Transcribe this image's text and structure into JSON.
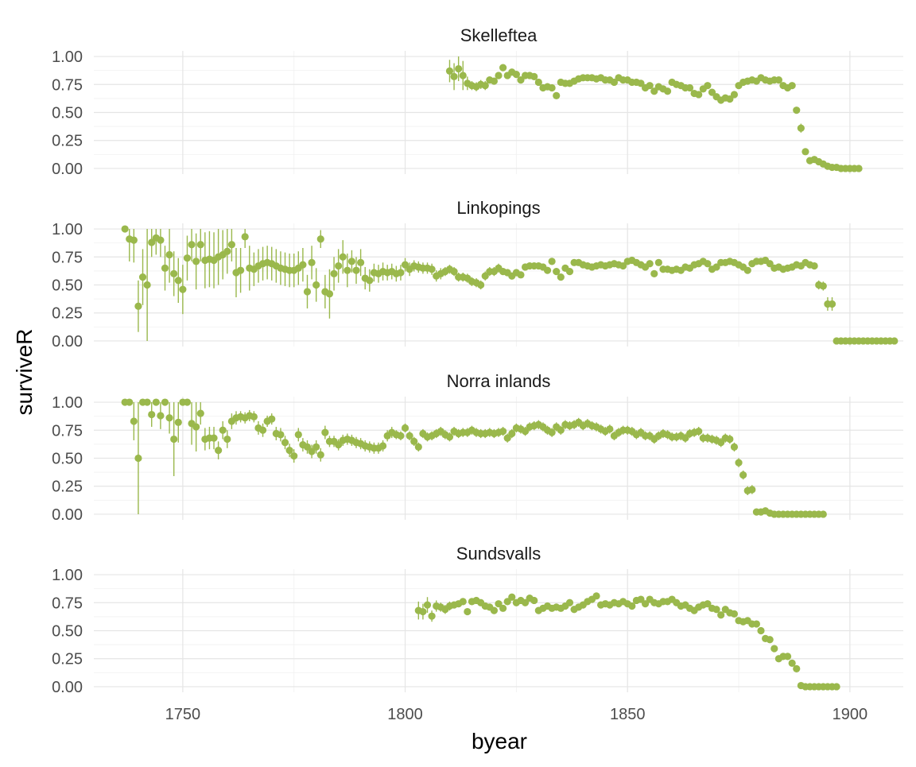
{
  "chart_data": {
    "type": "scatter",
    "xlabel": "byear",
    "ylabel": "surviveR",
    "xlim": [
      1730,
      1912
    ],
    "ylim": [
      -0.05,
      1.05
    ],
    "x_ticks": [
      1750,
      1800,
      1850,
      1900
    ],
    "x_tick_labels": [
      "1750",
      "1800",
      "1850",
      "1900"
    ],
    "y_ticks": [
      0,
      0.25,
      0.5,
      0.75,
      1
    ],
    "y_tick_labels": [
      "0.00",
      "0.25",
      "0.50",
      "0.75",
      "1.00"
    ],
    "grid": true,
    "error_bars": true,
    "point_color": "#9ab84c",
    "panels": [
      {
        "name": "Skelleftea",
        "x_start": 1810,
        "y": [
          0.87,
          0.82,
          0.89,
          0.83,
          0.76,
          0.74,
          0.73,
          0.75,
          0.74,
          0.79,
          0.78,
          0.83,
          0.9,
          0.83,
          0.86,
          0.84,
          0.79,
          0.83,
          0.83,
          0.82,
          0.77,
          0.72,
          0.73,
          0.72,
          0.65,
          0.77,
          0.76,
          0.76,
          0.78,
          0.8,
          0.81,
          0.81,
          0.81,
          0.8,
          0.81,
          0.79,
          0.79,
          0.77,
          0.81,
          0.79,
          0.79,
          0.77,
          0.77,
          0.76,
          0.72,
          0.74,
          0.69,
          0.73,
          0.71,
          0.69,
          0.77,
          0.75,
          0.74,
          0.72,
          0.72,
          0.67,
          0.66,
          0.71,
          0.74,
          0.68,
          0.64,
          0.61,
          0.63,
          0.62,
          0.66,
          0.74,
          0.77,
          0.78,
          0.79,
          0.78,
          0.81,
          0.79,
          0.78,
          0.79,
          0.79,
          0.74,
          0.72,
          0.74,
          0.52,
          0.36,
          0.15,
          0.07,
          0.08,
          0.06,
          0.04,
          0.02,
          0.01,
          0.01,
          0.0,
          0.0,
          0.0,
          0.0,
          0.0
        ],
        "err": [
          0.1,
          0.12,
          0.11,
          0.13,
          0.06,
          0.04,
          0.04,
          0.04,
          0.04,
          0.03,
          0.03,
          0.03,
          0.03,
          0.03,
          0.03,
          0.03,
          0.03,
          0.03,
          0.03,
          0.03,
          0.03,
          0.03,
          0.03,
          0.03,
          0.03,
          0.03,
          0.03,
          0.02,
          0.02,
          0.02,
          0.02,
          0.02,
          0.02,
          0.02,
          0.02,
          0.02,
          0.02,
          0.02,
          0.02,
          0.02,
          0.02,
          0.02,
          0.02,
          0.02,
          0.02,
          0.02,
          0.02,
          0.02,
          0.02,
          0.02,
          0.02,
          0.02,
          0.02,
          0.02,
          0.02,
          0.02,
          0.02,
          0.02,
          0.02,
          0.02,
          0.02,
          0.02,
          0.02,
          0.02,
          0.02,
          0.02,
          0.02,
          0.02,
          0.02,
          0.02,
          0.02,
          0.02,
          0.02,
          0.02,
          0.02,
          0.02,
          0.02,
          0.02,
          0.03,
          0.04,
          0.03,
          0.02,
          0.02,
          0.01,
          0.01,
          0.01,
          0.0,
          0.0,
          0.0,
          0.0,
          0.0,
          0.0,
          0.0
        ]
      },
      {
        "name": "Linkopings",
        "x_start": 1737,
        "y": [
          1.0,
          0.91,
          0.9,
          0.31,
          0.57,
          0.5,
          0.88,
          0.92,
          0.9,
          0.65,
          0.77,
          0.6,
          0.54,
          0.46,
          0.74,
          0.86,
          0.71,
          0.86,
          0.72,
          0.73,
          0.72,
          0.75,
          0.77,
          0.8,
          0.86,
          0.61,
          0.63,
          0.93,
          0.65,
          0.64,
          0.67,
          0.69,
          0.7,
          0.69,
          0.67,
          0.65,
          0.64,
          0.63,
          0.63,
          0.65,
          0.68,
          0.44,
          0.7,
          0.5,
          0.91,
          0.44,
          0.42,
          0.6,
          0.67,
          0.75,
          0.63,
          0.71,
          0.63,
          0.7,
          0.56,
          0.54,
          0.61,
          0.6,
          0.62,
          0.61,
          0.62,
          0.6,
          0.61,
          0.68,
          0.64,
          0.67,
          0.66,
          0.65,
          0.65,
          0.64,
          0.58,
          0.6,
          0.62,
          0.64,
          0.62,
          0.57,
          0.57,
          0.56,
          0.53,
          0.52,
          0.5,
          0.58,
          0.62,
          0.62,
          0.65,
          0.62,
          0.61,
          0.58,
          0.61,
          0.59,
          0.66,
          0.67,
          0.67,
          0.67,
          0.66,
          0.63,
          0.71,
          0.62,
          0.57,
          0.65,
          0.62,
          0.7,
          0.7,
          0.68,
          0.67,
          0.66,
          0.67,
          0.68,
          0.67,
          0.68,
          0.69,
          0.68,
          0.67,
          0.71,
          0.72,
          0.7,
          0.68,
          0.66,
          0.69,
          0.6,
          0.7,
          0.64,
          0.64,
          0.63,
          0.64,
          0.63,
          0.66,
          0.65,
          0.68,
          0.69,
          0.71,
          0.69,
          0.64,
          0.66,
          0.7,
          0.7,
          0.71,
          0.7,
          0.68,
          0.66,
          0.63,
          0.69,
          0.71,
          0.71,
          0.72,
          0.69,
          0.65,
          0.66,
          0.64,
          0.65,
          0.66,
          0.68,
          0.67,
          0.7,
          0.68,
          0.67,
          0.5,
          0.49,
          0.33,
          0.33,
          0.0,
          0.0,
          0.0,
          0.0,
          0.0,
          0.0,
          0.0,
          0.0,
          0.0,
          0.0,
          0.0,
          0.0,
          0.0,
          0.0
        ],
        "err": [
          0.0,
          0.2,
          0.2,
          0.23,
          0.25,
          0.5,
          0.13,
          0.15,
          0.15,
          0.2,
          0.25,
          0.2,
          0.2,
          0.22,
          0.2,
          0.15,
          0.25,
          0.15,
          0.25,
          0.25,
          0.25,
          0.25,
          0.22,
          0.2,
          0.15,
          0.22,
          0.2,
          0.1,
          0.2,
          0.15,
          0.15,
          0.15,
          0.15,
          0.15,
          0.15,
          0.15,
          0.15,
          0.15,
          0.15,
          0.15,
          0.15,
          0.15,
          0.15,
          0.15,
          0.08,
          0.15,
          0.22,
          0.15,
          0.15,
          0.15,
          0.15,
          0.1,
          0.12,
          0.12,
          0.1,
          0.1,
          0.08,
          0.08,
          0.08,
          0.07,
          0.07,
          0.07,
          0.07,
          0.06,
          0.06,
          0.05,
          0.05,
          0.05,
          0.05,
          0.05,
          0.05,
          0.05,
          0.04,
          0.04,
          0.04,
          0.04,
          0.04,
          0.04,
          0.04,
          0.04,
          0.04,
          0.04,
          0.04,
          0.04,
          0.04,
          0.03,
          0.03,
          0.03,
          0.03,
          0.03,
          0.03,
          0.03,
          0.03,
          0.03,
          0.03,
          0.03,
          0.03,
          0.03,
          0.03,
          0.03,
          0.03,
          0.03,
          0.03,
          0.03,
          0.03,
          0.03,
          0.03,
          0.03,
          0.03,
          0.03,
          0.03,
          0.03,
          0.03,
          0.03,
          0.03,
          0.03,
          0.03,
          0.03,
          0.03,
          0.03,
          0.03,
          0.03,
          0.03,
          0.03,
          0.03,
          0.03,
          0.03,
          0.03,
          0.03,
          0.03,
          0.03,
          0.03,
          0.03,
          0.03,
          0.03,
          0.03,
          0.03,
          0.03,
          0.03,
          0.03,
          0.03,
          0.03,
          0.03,
          0.03,
          0.03,
          0.03,
          0.03,
          0.03,
          0.03,
          0.03,
          0.03,
          0.03,
          0.03,
          0.03,
          0.03,
          0.03,
          0.04,
          0.04,
          0.06,
          0.06,
          0.0,
          0.0,
          0.0,
          0.0,
          0.0,
          0.0,
          0.0,
          0.0,
          0.0,
          0.0,
          0.0,
          0.0,
          0.0,
          0.0
        ]
      },
      {
        "name": "Norra inlands",
        "x_start": 1737,
        "y": [
          1.0,
          1.0,
          0.83,
          0.5,
          1.0,
          1.0,
          0.89,
          1.0,
          0.88,
          1.0,
          0.86,
          0.67,
          0.82,
          1.0,
          1.0,
          0.81,
          0.78,
          0.9,
          0.67,
          0.68,
          0.68,
          0.57,
          0.75,
          0.67,
          0.83,
          0.86,
          0.87,
          0.86,
          0.88,
          0.87,
          0.77,
          0.75,
          0.83,
          0.85,
          0.72,
          0.71,
          0.64,
          0.57,
          0.52,
          0.71,
          0.62,
          0.6,
          0.56,
          0.6,
          0.53,
          0.73,
          0.65,
          0.65,
          0.62,
          0.66,
          0.67,
          0.66,
          0.64,
          0.63,
          0.61,
          0.6,
          0.59,
          0.59,
          0.61,
          0.7,
          0.73,
          0.71,
          0.7,
          0.77,
          0.7,
          0.65,
          0.6,
          0.72,
          0.69,
          0.7,
          0.72,
          0.74,
          0.71,
          0.69,
          0.74,
          0.72,
          0.73,
          0.73,
          0.75,
          0.73,
          0.72,
          0.72,
          0.73,
          0.72,
          0.73,
          0.74,
          0.68,
          0.72,
          0.77,
          0.76,
          0.74,
          0.78,
          0.79,
          0.8,
          0.78,
          0.75,
          0.73,
          0.78,
          0.75,
          0.8,
          0.79,
          0.8,
          0.82,
          0.79,
          0.81,
          0.79,
          0.78,
          0.76,
          0.74,
          0.76,
          0.7,
          0.73,
          0.75,
          0.75,
          0.74,
          0.71,
          0.73,
          0.7,
          0.7,
          0.67,
          0.7,
          0.72,
          0.71,
          0.69,
          0.69,
          0.7,
          0.68,
          0.72,
          0.73,
          0.74,
          0.68,
          0.68,
          0.67,
          0.66,
          0.64,
          0.68,
          0.67,
          0.6,
          0.46,
          0.35,
          0.21,
          0.22,
          0.02,
          0.02,
          0.03,
          0.01,
          0.0,
          0.0,
          0.0,
          0.0,
          0.0,
          0.0,
          0.0,
          0.0,
          0.0,
          0.0,
          0.0,
          0.0
        ],
        "err": [
          0.0,
          0.0,
          0.17,
          0.5,
          0.0,
          0.0,
          0.11,
          0.0,
          0.12,
          0.0,
          0.14,
          0.33,
          0.18,
          0.0,
          0.0,
          0.19,
          0.22,
          0.1,
          0.1,
          0.1,
          0.1,
          0.08,
          0.08,
          0.08,
          0.07,
          0.06,
          0.05,
          0.05,
          0.05,
          0.05,
          0.06,
          0.06,
          0.05,
          0.05,
          0.06,
          0.06,
          0.06,
          0.06,
          0.06,
          0.06,
          0.06,
          0.06,
          0.06,
          0.06,
          0.06,
          0.06,
          0.05,
          0.05,
          0.05,
          0.05,
          0.05,
          0.05,
          0.05,
          0.05,
          0.05,
          0.05,
          0.05,
          0.05,
          0.05,
          0.05,
          0.05,
          0.04,
          0.04,
          0.04,
          0.04,
          0.04,
          0.04,
          0.04,
          0.04,
          0.04,
          0.04,
          0.04,
          0.04,
          0.04,
          0.04,
          0.04,
          0.04,
          0.04,
          0.04,
          0.04,
          0.04,
          0.04,
          0.04,
          0.04,
          0.04,
          0.04,
          0.04,
          0.04,
          0.04,
          0.04,
          0.04,
          0.04,
          0.04,
          0.04,
          0.04,
          0.04,
          0.04,
          0.04,
          0.04,
          0.04,
          0.04,
          0.04,
          0.04,
          0.04,
          0.04,
          0.04,
          0.04,
          0.04,
          0.04,
          0.04,
          0.04,
          0.04,
          0.04,
          0.04,
          0.04,
          0.04,
          0.04,
          0.04,
          0.04,
          0.04,
          0.04,
          0.04,
          0.04,
          0.04,
          0.04,
          0.04,
          0.04,
          0.04,
          0.04,
          0.04,
          0.04,
          0.04,
          0.04,
          0.04,
          0.04,
          0.04,
          0.04,
          0.04,
          0.04,
          0.04,
          0.04,
          0.04,
          0.01,
          0.01,
          0.01,
          0.0,
          0.0,
          0.0,
          0.0,
          0.0,
          0.0,
          0.0,
          0.0,
          0.0,
          0.0,
          0.0,
          0.0,
          0.0
        ]
      },
      {
        "name": "Sundsvalls",
        "x_start": 1803,
        "y": [
          0.68,
          0.67,
          0.73,
          0.63,
          0.72,
          0.71,
          0.69,
          0.72,
          0.73,
          0.74,
          0.76,
          0.67,
          0.76,
          0.77,
          0.75,
          0.72,
          0.71,
          0.68,
          0.74,
          0.7,
          0.76,
          0.8,
          0.75,
          0.77,
          0.75,
          0.79,
          0.77,
          0.68,
          0.7,
          0.72,
          0.7,
          0.71,
          0.7,
          0.72,
          0.75,
          0.69,
          0.71,
          0.73,
          0.76,
          0.78,
          0.81,
          0.73,
          0.74,
          0.73,
          0.75,
          0.74,
          0.76,
          0.74,
          0.72,
          0.77,
          0.78,
          0.74,
          0.78,
          0.75,
          0.74,
          0.76,
          0.76,
          0.78,
          0.75,
          0.72,
          0.73,
          0.7,
          0.68,
          0.71,
          0.73,
          0.74,
          0.7,
          0.69,
          0.64,
          0.69,
          0.66,
          0.65,
          0.59,
          0.58,
          0.59,
          0.56,
          0.56,
          0.5,
          0.43,
          0.42,
          0.34,
          0.25,
          0.27,
          0.27,
          0.21,
          0.16,
          0.01,
          0.0,
          0.0,
          0.0,
          0.0,
          0.0,
          0.0,
          0.0,
          0.0
        ],
        "err": [
          0.08,
          0.07,
          0.07,
          0.05,
          0.05,
          0.04,
          0.04,
          0.04,
          0.03,
          0.03,
          0.03,
          0.03,
          0.03,
          0.03,
          0.03,
          0.03,
          0.03,
          0.03,
          0.03,
          0.03,
          0.03,
          0.03,
          0.03,
          0.03,
          0.03,
          0.03,
          0.03,
          0.03,
          0.03,
          0.03,
          0.03,
          0.03,
          0.03,
          0.03,
          0.03,
          0.03,
          0.03,
          0.03,
          0.03,
          0.03,
          0.03,
          0.03,
          0.03,
          0.03,
          0.03,
          0.03,
          0.03,
          0.03,
          0.03,
          0.03,
          0.03,
          0.03,
          0.03,
          0.03,
          0.03,
          0.03,
          0.03,
          0.03,
          0.03,
          0.03,
          0.03,
          0.03,
          0.03,
          0.03,
          0.03,
          0.03,
          0.03,
          0.03,
          0.03,
          0.03,
          0.03,
          0.03,
          0.03,
          0.03,
          0.03,
          0.03,
          0.03,
          0.03,
          0.03,
          0.03,
          0.03,
          0.03,
          0.03,
          0.03,
          0.03,
          0.03,
          0.01,
          0.0,
          0.0,
          0.0,
          0.0,
          0.0,
          0.0,
          0.0,
          0.0
        ]
      }
    ]
  }
}
